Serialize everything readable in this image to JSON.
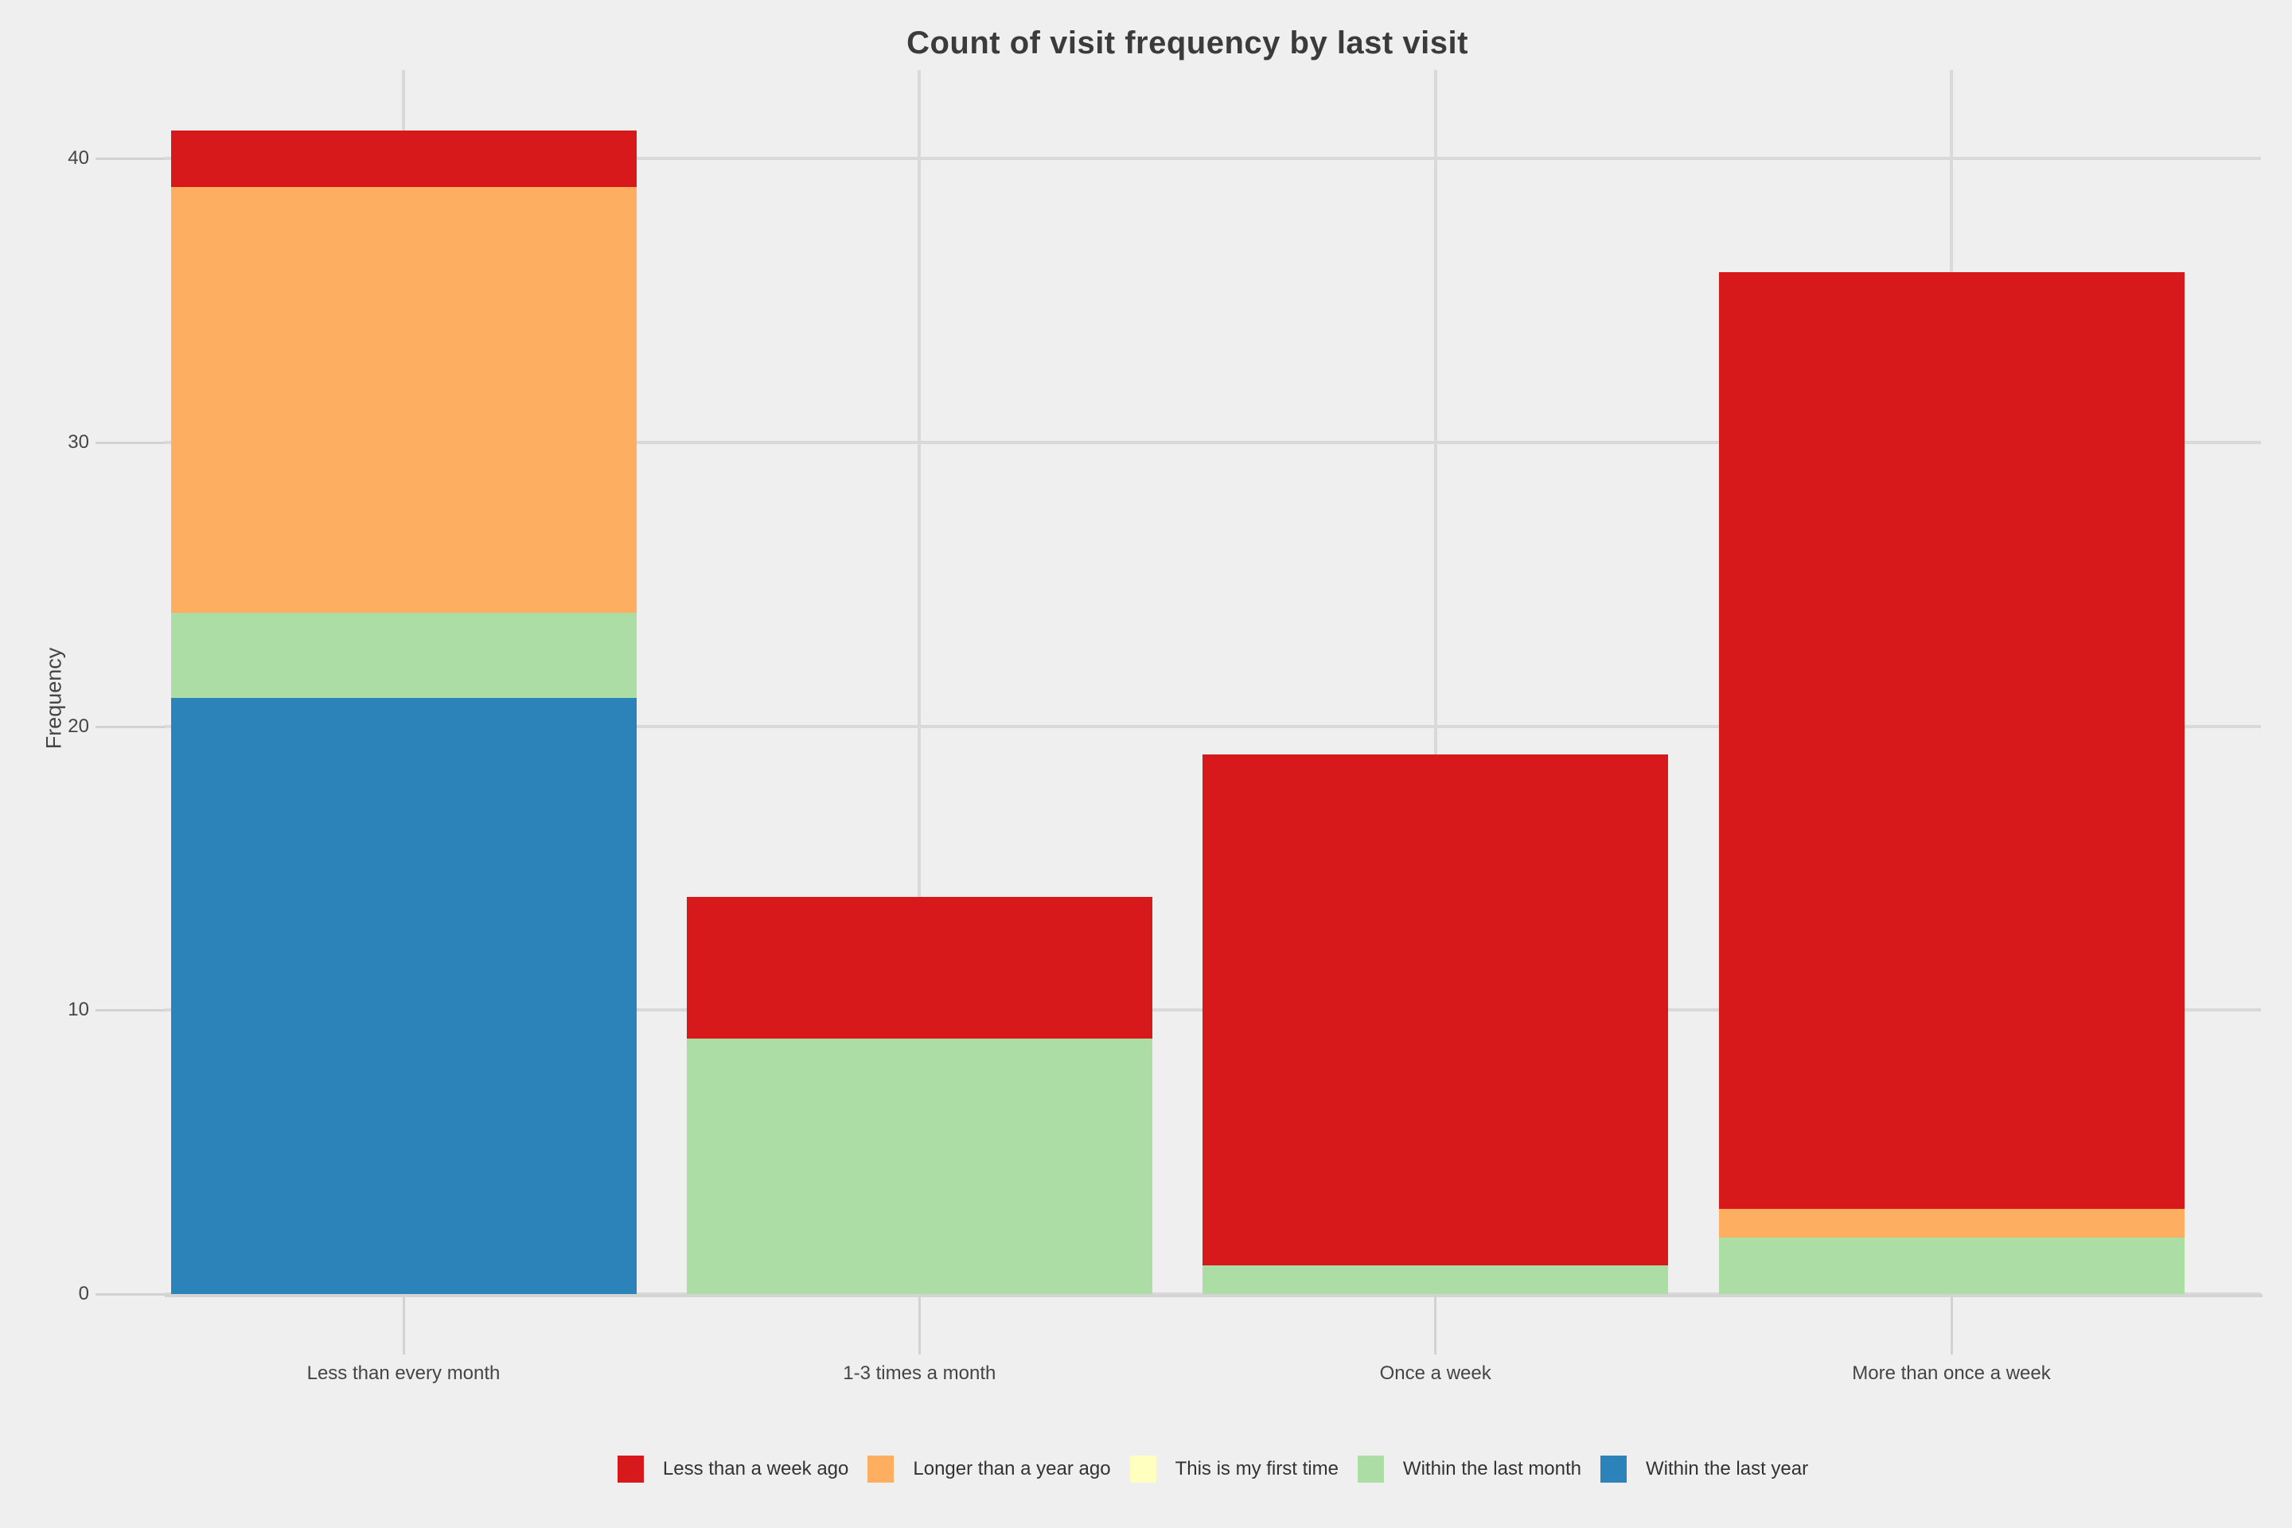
{
  "title": "Count of visit frequency by last visit",
  "colors": {
    "background": "#efefef",
    "gridline": "#d9d9d9",
    "axis_line": "#d4d4d4",
    "tick": "#d2d2d2",
    "title_text": "#3b3b3b",
    "label_text": "#454545"
  },
  "chart_data": {
    "type": "bar",
    "stacked": true,
    "title": "Count of visit frequency by last visit",
    "xlabel": "",
    "ylabel": "Frequency",
    "categories": [
      "Less than every month",
      "1-3 times a month",
      "Once a week",
      "More than once a week"
    ],
    "series": [
      {
        "name": "Within the last year",
        "color": "#2b83ba",
        "values": [
          21,
          0,
          0,
          0
        ]
      },
      {
        "name": "Within the last month",
        "color": "#abdda4",
        "values": [
          3,
          9,
          1,
          2
        ]
      },
      {
        "name": "This is my first time",
        "color": "#ffffbf",
        "values": [
          0,
          0,
          0,
          0
        ]
      },
      {
        "name": "Longer than a year ago",
        "color": "#fdae61",
        "values": [
          15,
          0,
          0,
          1
        ]
      },
      {
        "name": "Less than a week ago",
        "color": "#d7191c",
        "values": [
          2,
          5,
          18,
          33
        ]
      }
    ],
    "stack_totals": [
      41,
      14,
      19,
      36
    ],
    "y_ticks": [
      0,
      10,
      20,
      30,
      40
    ],
    "ylim": [
      0,
      43.2
    ],
    "grid": true,
    "legend_position": "bottom",
    "legend": [
      {
        "label": "Less than a week ago",
        "color": "#d7191c"
      },
      {
        "label": "Longer than a year ago",
        "color": "#fdae61"
      },
      {
        "label": "This is my first time",
        "color": "#ffffbf"
      },
      {
        "label": "Within the last month",
        "color": "#abdda4"
      },
      {
        "label": "Within the last year",
        "color": "#2b83ba"
      }
    ]
  }
}
